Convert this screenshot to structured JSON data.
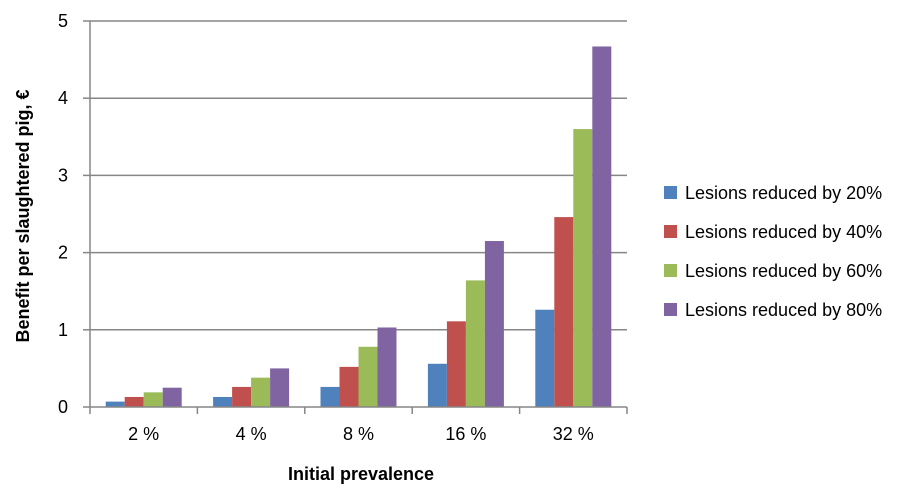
{
  "chart_data": {
    "type": "bar",
    "xlabel": "Initial prevalence",
    "ylabel": "Benefit per slaughtered pig, €",
    "categories": [
      "2 %",
      "4 %",
      "8 %",
      "16 %",
      "32 %"
    ],
    "ylim": [
      0,
      5
    ],
    "yticks": [
      0,
      1,
      2,
      3,
      4,
      5
    ],
    "grid": true,
    "legend_position": "right",
    "series": [
      {
        "name": "Lesions reduced by 20%",
        "color": "#4F81BD",
        "values": [
          0.07,
          0.13,
          0.26,
          0.56,
          1.26
        ]
      },
      {
        "name": "Lesions reduced by 40%",
        "color": "#C0504D",
        "values": [
          0.13,
          0.26,
          0.52,
          1.11,
          2.46
        ]
      },
      {
        "name": "Lesions reduced by 60%",
        "color": "#9BBB59",
        "values": [
          0.19,
          0.38,
          0.78,
          1.64,
          3.6
        ]
      },
      {
        "name": "Lesions reduced by 80%",
        "color": "#8064A2",
        "values": [
          0.25,
          0.5,
          1.03,
          2.15,
          4.67
        ]
      }
    ]
  }
}
